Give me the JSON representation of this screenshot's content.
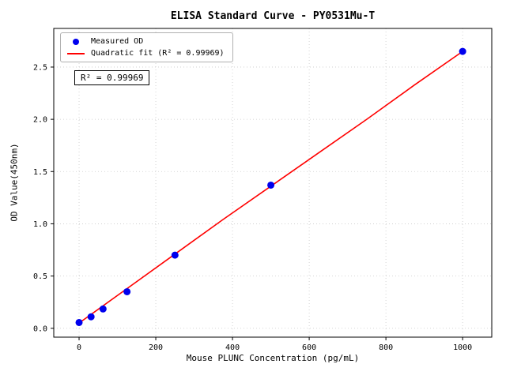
{
  "chart_data": {
    "type": "scatter",
    "title": "ELISA Standard Curve - PY0531Mu-T",
    "xlabel": "Mouse PLUNC Concentration (pg/mL)",
    "ylabel": "OD Value(450nm)",
    "xlim": [
      -66,
      1076
    ],
    "ylim": [
      -0.085,
      2.87
    ],
    "xticks": [
      0,
      200,
      400,
      600,
      800,
      1000
    ],
    "xtick_labels": [
      "0",
      "200",
      "400",
      "600",
      "800",
      "1000"
    ],
    "yticks": [
      0,
      0.5,
      1.0,
      1.5,
      2.0,
      2.5
    ],
    "ytick_labels": [
      "0.0",
      "0.5",
      "1.0",
      "1.5",
      "2.0",
      "2.5"
    ],
    "grid": true,
    "grid_style": "dotted",
    "legend_position": "upper left",
    "annotation": "R² = 0.99969",
    "series": [
      {
        "name": "Measured OD",
        "type": "scatter",
        "color": "#0000ee",
        "marker": "circle",
        "x": [
          0,
          31.25,
          62.5,
          125,
          250,
          500,
          1000
        ],
        "y": [
          0.055,
          0.11,
          0.185,
          0.35,
          0.7,
          1.37,
          2.65
        ]
      },
      {
        "name": "Quadratic fit (R² = 0.99969)",
        "type": "line",
        "color": "#ff0000",
        "x": [
          0,
          125,
          250,
          375,
          500,
          625,
          750,
          875,
          1000
        ],
        "y": [
          0.05,
          0.38,
          0.71,
          1.04,
          1.36,
          1.68,
          2.0,
          2.33,
          2.65
        ]
      }
    ]
  }
}
